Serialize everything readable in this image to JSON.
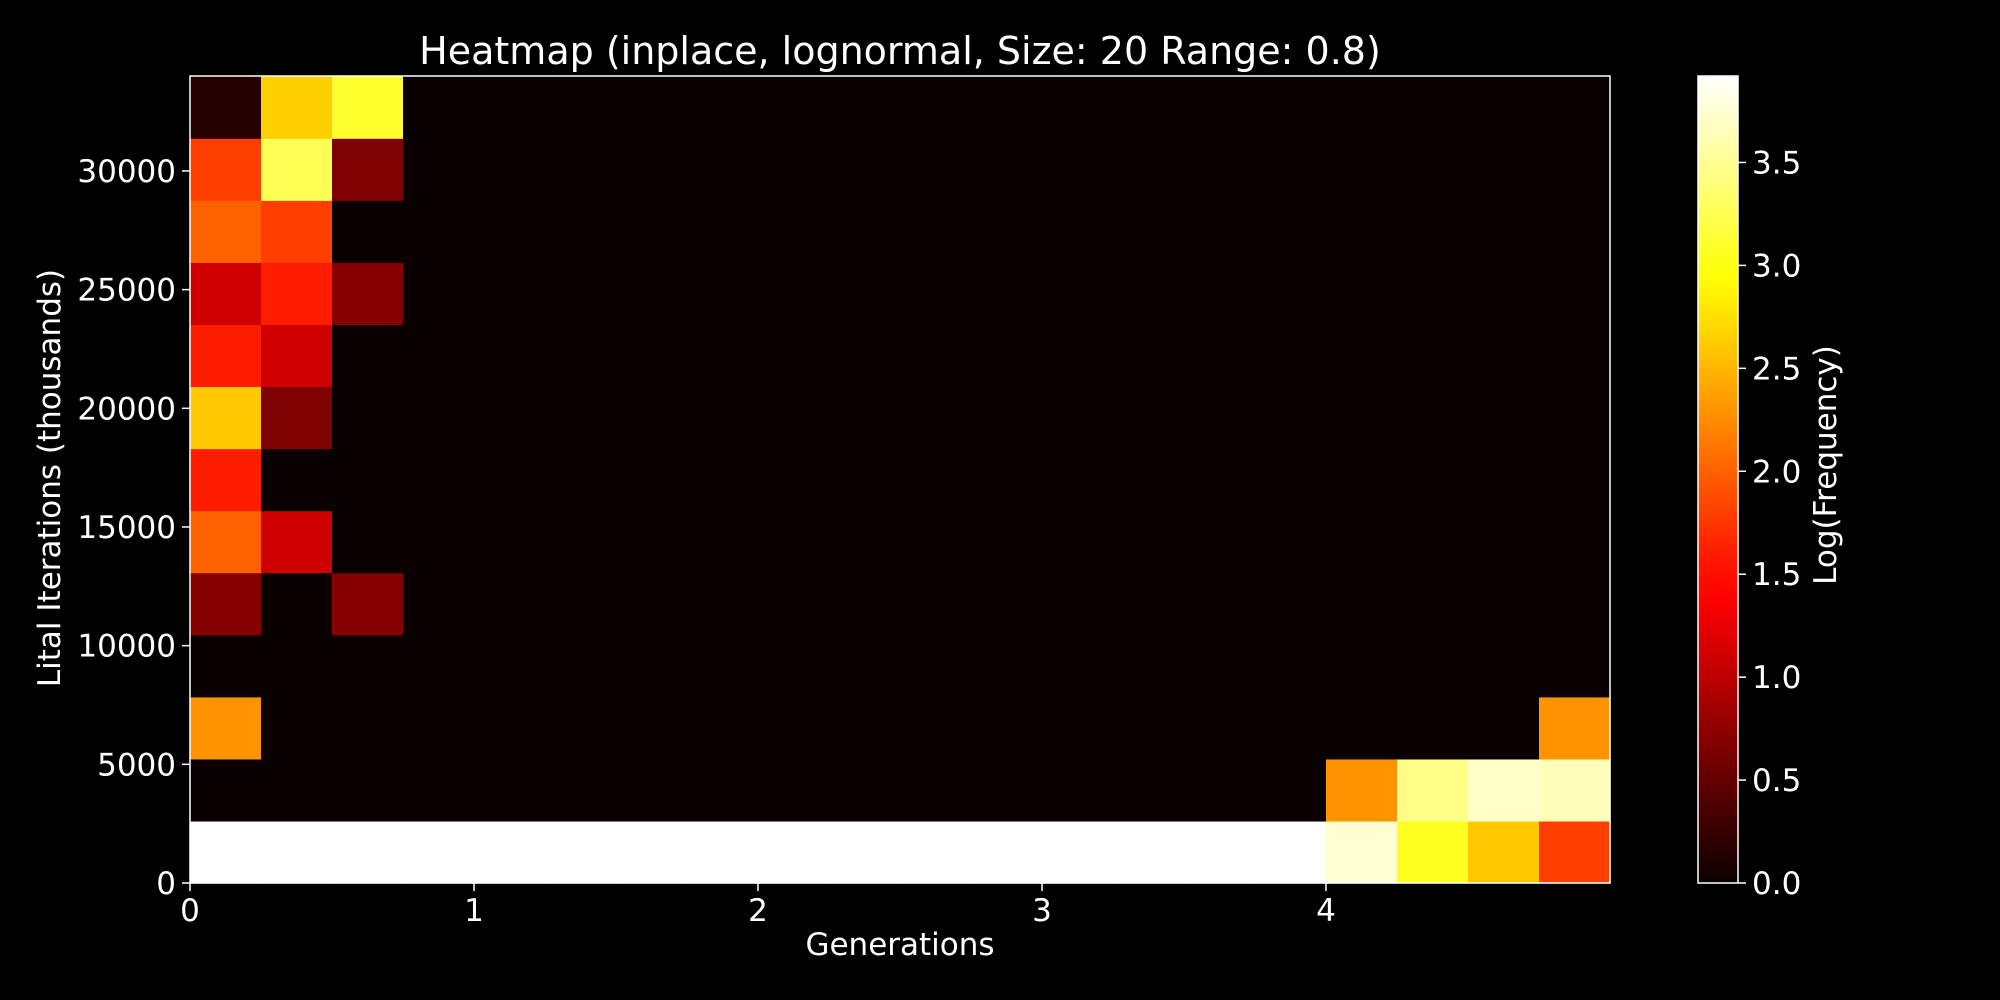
{
  "chart_data": {
    "type": "heatmap",
    "title": "Heatmap (inplace, lognormal, Size: 20 Range: 0.8)",
    "xlabel": "Generations",
    "ylabel": "Lital Iterations (thousands)",
    "colorbar_label": "Log(Frequency)",
    "colormap": "hot",
    "xlim": [
      0,
      5
    ],
    "ylim": [
      0,
      34000
    ],
    "clim": [
      0,
      3.92
    ],
    "x_ticks": [
      0,
      1,
      2,
      3,
      4
    ],
    "x_tick_labels": [
      "0",
      "1",
      "2",
      "3",
      "4"
    ],
    "y_ticks": [
      0,
      5000,
      10000,
      15000,
      20000,
      25000,
      30000
    ],
    "y_tick_labels": [
      "0",
      "5000",
      "10000",
      "15000",
      "20000",
      "25000",
      "30000"
    ],
    "colorbar_ticks": [
      0,
      0.5,
      1.0,
      1.5,
      2.0,
      2.5,
      3.0,
      3.5
    ],
    "colorbar_tick_labels": [
      "0.0",
      "0.5",
      "1.0",
      "1.5",
      "2.0",
      "2.5",
      "3.0",
      "3.5"
    ],
    "x_bin_edges": [
      0,
      0.25,
      0.5,
      0.75,
      1.0,
      1.25,
      1.5,
      1.75,
      2.0,
      2.25,
      2.5,
      2.75,
      3.0,
      3.25,
      3.5,
      3.75,
      4.0,
      4.25,
      4.5,
      4.75,
      5.0
    ],
    "y_bin_edges": [
      0,
      2615,
      5230,
      7845,
      10460,
      13075,
      15690,
      18305,
      20920,
      23535,
      26150,
      28765,
      31380,
      34000
    ],
    "values_row_order": "bottom-to-top; each row lists the 20 x-bins left-to-right",
    "values": [
      [
        3.92,
        3.92,
        3.92,
        3.92,
        3.92,
        3.92,
        3.92,
        3.92,
        3.92,
        3.92,
        3.92,
        3.92,
        3.92,
        3.92,
        3.92,
        3.92,
        3.75,
        3.05,
        2.6,
        1.8
      ],
      [
        0,
        0,
        0,
        0,
        0,
        0,
        0,
        0,
        0,
        0,
        0,
        0,
        0,
        0,
        0,
        0,
        2.3,
        3.45,
        3.7,
        3.65
      ],
      [
        2.3,
        0,
        0,
        0,
        0,
        0,
        0,
        0,
        0,
        0,
        0,
        0,
        0,
        0,
        0,
        0,
        0,
        0,
        0,
        2.3
      ],
      [
        0,
        0,
        0,
        0,
        0,
        0,
        0,
        0,
        0,
        0,
        0,
        0,
        0,
        0,
        0,
        0,
        0,
        0,
        0,
        0
      ],
      [
        0.7,
        0,
        0.7,
        0,
        0,
        0,
        0,
        0,
        0,
        0,
        0,
        0,
        0,
        0,
        0,
        0,
        0,
        0,
        0,
        0
      ],
      [
        2.0,
        1.1,
        0,
        0,
        0,
        0,
        0,
        0,
        0,
        0,
        0,
        0,
        0,
        0,
        0,
        0,
        0,
        0,
        0,
        0
      ],
      [
        1.6,
        0,
        0,
        0,
        0,
        0,
        0,
        0,
        0,
        0,
        0,
        0,
        0,
        0,
        0,
        0,
        0,
        0,
        0,
        0
      ],
      [
        2.6,
        0.65,
        0,
        0,
        0,
        0,
        0,
        0,
        0,
        0,
        0,
        0,
        0,
        0,
        0,
        0,
        0,
        0,
        0,
        0
      ],
      [
        1.6,
        1.1,
        0,
        0,
        0,
        0,
        0,
        0,
        0,
        0,
        0,
        0,
        0,
        0,
        0,
        0,
        0,
        0,
        0,
        0
      ],
      [
        1.1,
        1.6,
        0.7,
        0,
        0,
        0,
        0,
        0,
        0,
        0,
        0,
        0,
        0,
        0,
        0,
        0,
        0,
        0,
        0,
        0
      ],
      [
        2.0,
        1.8,
        0,
        0,
        0,
        0,
        0,
        0,
        0,
        0,
        0,
        0,
        0,
        0,
        0,
        0,
        0,
        0,
        0,
        0
      ],
      [
        1.8,
        3.25,
        0.65,
        0,
        0,
        0,
        0,
        0,
        0,
        0,
        0,
        0,
        0,
        0,
        0,
        0,
        0,
        0,
        0,
        0
      ],
      [
        0.15,
        2.65,
        3.1,
        0,
        0,
        0,
        0,
        0,
        0,
        0,
        0,
        0,
        0,
        0,
        0,
        0,
        0,
        0,
        0,
        0
      ]
    ],
    "grid": false
  }
}
